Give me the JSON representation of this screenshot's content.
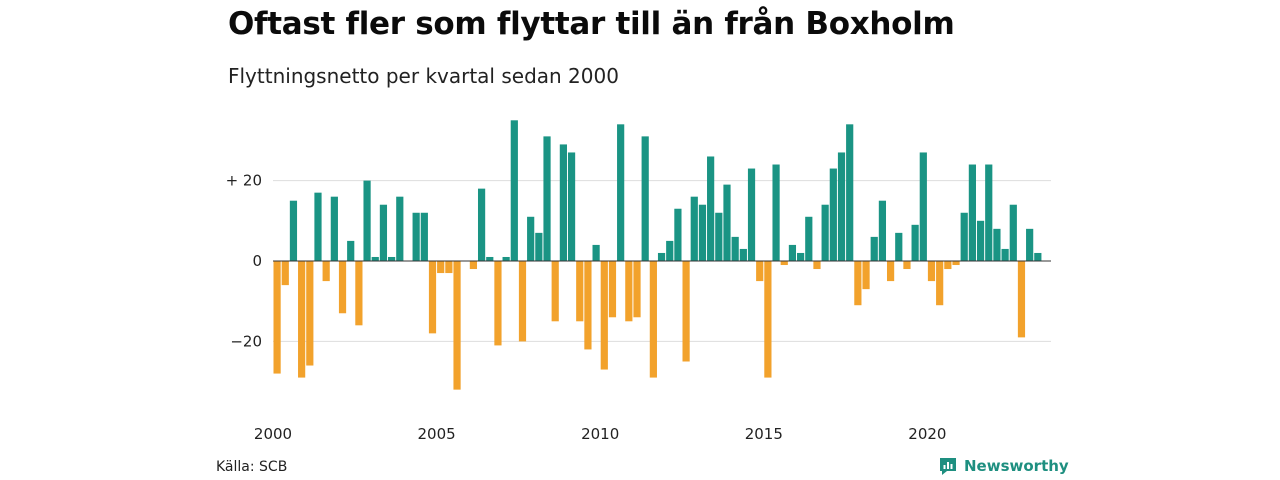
{
  "title": "Oftast fler som flyttar till än från Boxholm",
  "subtitle": "Flyttningsnetto per kvartal sedan 2000",
  "source": "Källa: SCB",
  "brand": {
    "name": "Newsworthy",
    "icon": "newsworthy-logo-icon",
    "color": "#1e8f80"
  },
  "colors": {
    "positive": "#1a9484",
    "negative": "#f2a22c",
    "grid": "#dddddd",
    "zero": "#333333"
  },
  "chart_data": {
    "type": "bar",
    "x_start_year": 2000,
    "periods_per_year": 4,
    "x_tick_labels": [
      "2000",
      "2005",
      "2010",
      "2015",
      "2020"
    ],
    "y_ticks": [
      {
        "value": 20,
        "label": "+ 20"
      },
      {
        "value": 0,
        "label": "0"
      },
      {
        "value": -20,
        "label": "−20"
      }
    ],
    "ylim": [
      -34,
      36
    ],
    "grid": true,
    "values": [
      -28,
      -6,
      15,
      -29,
      -26,
      17,
      -5,
      16,
      -13,
      5,
      -16,
      20,
      1,
      14,
      1,
      16,
      0,
      12,
      12,
      -18,
      -3,
      -3,
      -32,
      0,
      -2,
      18,
      1,
      -21,
      1,
      35,
      -20,
      11,
      7,
      31,
      -15,
      29,
      27,
      -15,
      -22,
      4,
      -27,
      -14,
      34,
      -15,
      -14,
      31,
      -29,
      2,
      5,
      13,
      -25,
      16,
      14,
      26,
      12,
      19,
      6,
      3,
      23,
      -5,
      -29,
      24,
      -1,
      4,
      2,
      11,
      -2,
      14,
      23,
      27,
      34,
      -11,
      -7,
      6,
      15,
      -5,
      7,
      -2,
      9,
      27,
      -5,
      -11,
      -2,
      -1,
      12,
      24,
      10,
      24,
      8,
      3,
      14,
      -19,
      8,
      2
    ]
  }
}
